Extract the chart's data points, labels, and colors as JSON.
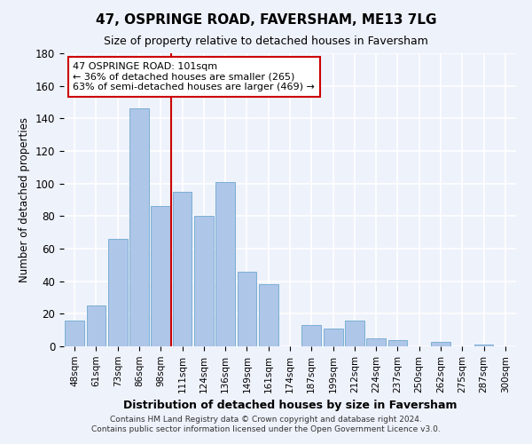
{
  "title": "47, OSPRINGE ROAD, FAVERSHAM, ME13 7LG",
  "subtitle": "Size of property relative to detached houses in Faversham",
  "xlabel": "Distribution of detached houses by size in Faversham",
  "ylabel": "Number of detached properties",
  "bar_labels": [
    "48sqm",
    "61sqm",
    "73sqm",
    "86sqm",
    "98sqm",
    "111sqm",
    "124sqm",
    "136sqm",
    "149sqm",
    "161sqm",
    "174sqm",
    "187sqm",
    "199sqm",
    "212sqm",
    "224sqm",
    "237sqm",
    "250sqm",
    "262sqm",
    "275sqm",
    "287sqm",
    "300sqm"
  ],
  "bar_values": [
    16,
    25,
    66,
    146,
    86,
    95,
    80,
    101,
    46,
    38,
    0,
    13,
    11,
    16,
    5,
    4,
    0,
    3,
    0,
    1,
    0
  ],
  "bar_color": "#aec6e8",
  "bar_edge_color": "#7bafd4",
  "vline_x": 4.5,
  "vline_color": "#cc0000",
  "annotation_title": "47 OSPRINGE ROAD: 101sqm",
  "annotation_line1": "← 36% of detached houses are smaller (265)",
  "annotation_line2": "63% of semi-detached houses are larger (469) →",
  "annotation_box_color": "#ffffff",
  "annotation_box_edge": "#cc0000",
  "ylim": [
    0,
    180
  ],
  "yticks": [
    0,
    20,
    40,
    60,
    80,
    100,
    120,
    140,
    160,
    180
  ],
  "footer_line1": "Contains HM Land Registry data © Crown copyright and database right 2024.",
  "footer_line2": "Contains public sector information licensed under the Open Government Licence v3.0.",
  "bg_color": "#eef2fb",
  "grid_color": "#ffffff"
}
